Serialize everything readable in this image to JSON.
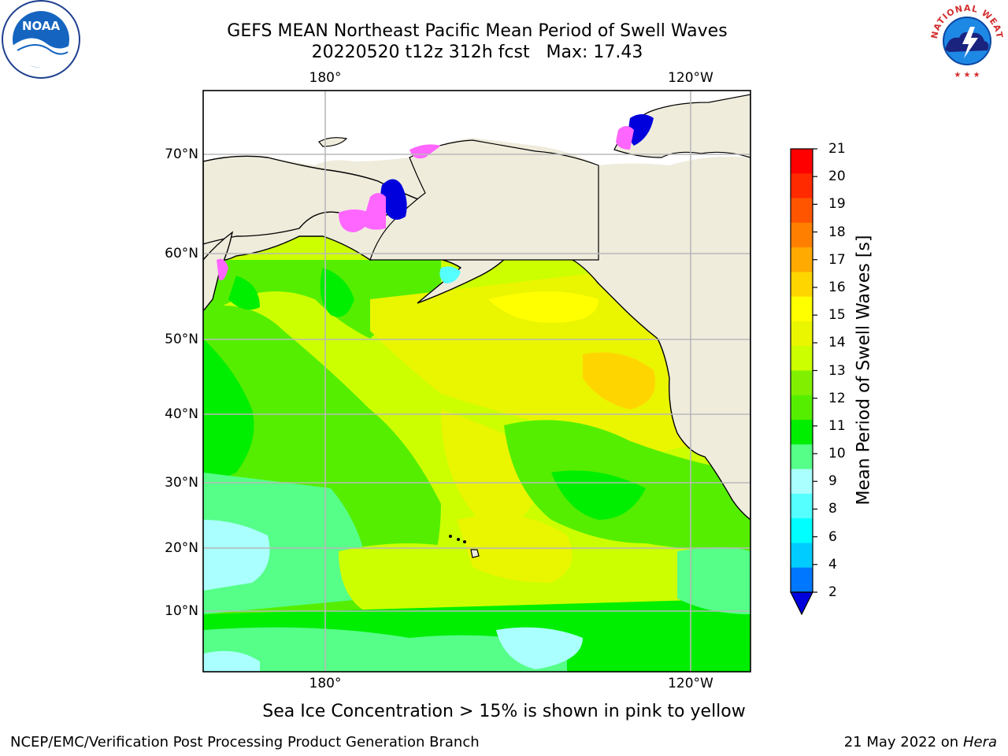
{
  "header": {
    "title": "GEFS MEAN Northeast Pacific Mean Period of Swell Waves",
    "subtitle": "20220520 t12z 312h fcst   Max: 17.43"
  },
  "logos": {
    "left": "NOAA",
    "right": "NATIONAL WEATHER SERVICE"
  },
  "map": {
    "lon_labels": [
      "180°",
      "120°W"
    ],
    "lat_labels": [
      "70°N",
      "60°N",
      "50°N",
      "40°N",
      "30°N",
      "20°N",
      "10°N"
    ],
    "land_color": "#efecdc",
    "grid_color": "#b8b8b8"
  },
  "colorbar": {
    "label": "Mean Period of Swell Waves [s]",
    "ticks": [
      "21",
      "20",
      "19",
      "18",
      "17",
      "16",
      "15",
      "14",
      "13",
      "12",
      "11",
      "10",
      "9",
      "8",
      "6",
      "4",
      "2"
    ],
    "colors_top_to_bottom": [
      "#ff0000",
      "#ff2a00",
      "#ff5500",
      "#ff8000",
      "#ffaa00",
      "#ffd500",
      "#ffff00",
      "#eaf500",
      "#ccff00",
      "#80f000",
      "#55ee00",
      "#00ee00",
      "#55ff88",
      "#aaffff",
      "#55ffff",
      "#00ffff",
      "#00ccff",
      "#0077ff"
    ],
    "extend_color": "#0000dd"
  },
  "notes": {
    "ice": "Sea Ice Concentration > 15% is shown in pink to yellow"
  },
  "footer": {
    "left": "NCEP/EMC/Verification Post Processing Product Generation Branch",
    "date": "21 May 2022 on",
    "host": "Hera"
  }
}
